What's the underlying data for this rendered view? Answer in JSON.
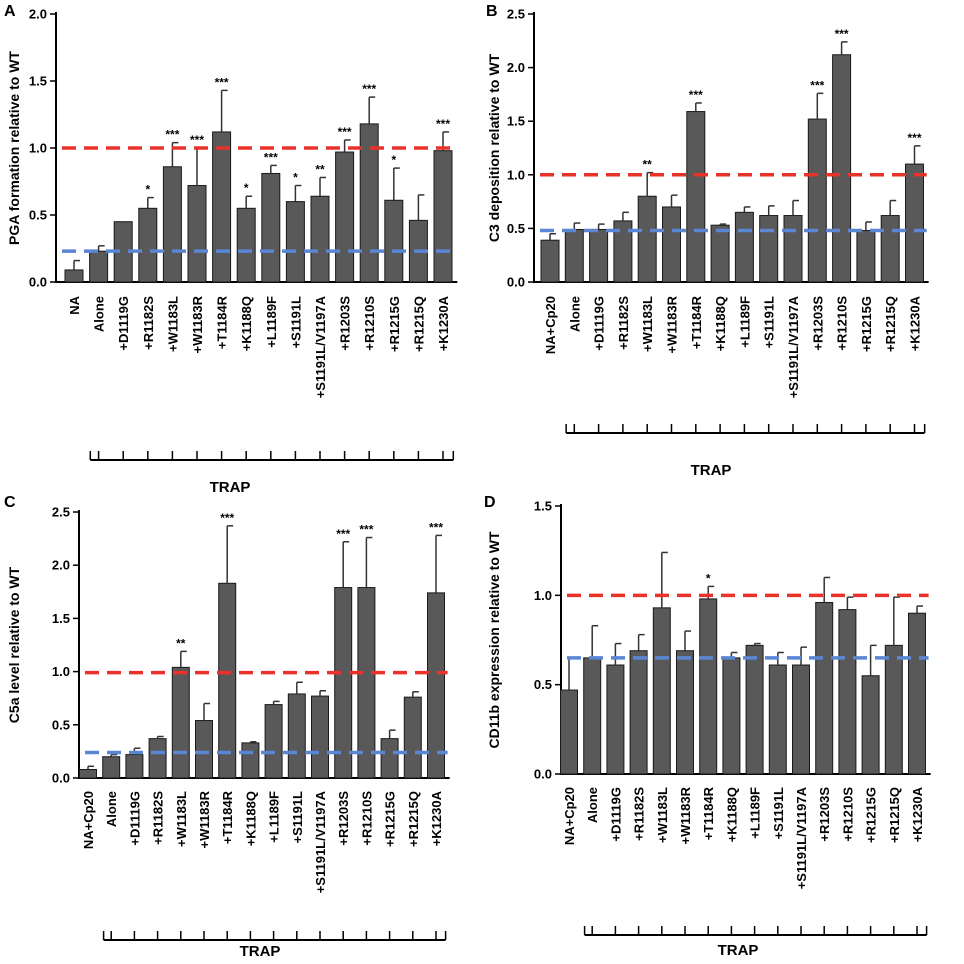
{
  "colors": {
    "bar": "#595959",
    "wt_line": "#e8322a",
    "baseline_line": "#5b86d4"
  },
  "chart_data": [
    {
      "panel": "A",
      "type": "bar",
      "ylabel": "PGA formation relative to WT",
      "ylim": [
        0,
        2.0
      ],
      "yticks": [
        "0.0",
        "0.5",
        "1.0",
        "1.5",
        "2.0"
      ],
      "group_label": "TRAP",
      "group_start_index": 1,
      "wt_line": 1.0,
      "baseline_line": 0.23,
      "categories": [
        "NA",
        "Alone",
        "+D1119G",
        "+R1182S",
        "+W1183L",
        "+W1183R",
        "+T1184R",
        "+K1188Q",
        "+L1189F",
        "+S1191L",
        "+S1191L/V1197A",
        "+R1203S",
        "+R1210S",
        "+R1215G",
        "+R1215Q",
        "+K1230A"
      ],
      "values": [
        0.09,
        0.23,
        0.45,
        0.55,
        0.86,
        0.72,
        1.12,
        0.55,
        0.81,
        0.6,
        0.64,
        0.97,
        1.18,
        0.61,
        0.46,
        0.98
      ],
      "errors": [
        0.07,
        0.04,
        0.0,
        0.08,
        0.18,
        0.28,
        0.31,
        0.09,
        0.06,
        0.12,
        0.14,
        0.09,
        0.2,
        0.24,
        0.19,
        0.14
      ],
      "significance": [
        "",
        "",
        "",
        "*",
        "***",
        "***",
        "***",
        "*",
        "***",
        "*",
        "**",
        "***",
        "***",
        "*",
        "",
        "***"
      ]
    },
    {
      "panel": "B",
      "type": "bar",
      "ylabel": "C3 deposition relative to WT",
      "ylim": [
        0,
        2.5
      ],
      "yticks": [
        "0.0",
        "0.5",
        "1.0",
        "1.5",
        "2.0",
        "2.5"
      ],
      "group_label": "TRAP",
      "group_start_index": 1,
      "wt_line": 1.0,
      "baseline_line": 0.48,
      "categories": [
        "NA+Cp20",
        "Alone",
        "+D1119G",
        "+R1182S",
        "+W1183L",
        "+W1183R",
        "+T1184R",
        "+K1188Q",
        "+L1189F",
        "+S1191L",
        "+S1191L/V1197A",
        "+R1203S",
        "+R1210S",
        "+R1215G",
        "+R1215Q",
        "+K1230A"
      ],
      "values": [
        0.39,
        0.49,
        0.49,
        0.57,
        0.8,
        0.7,
        1.59,
        0.53,
        0.65,
        0.62,
        0.62,
        1.52,
        2.12,
        0.48,
        0.62,
        1.1
      ],
      "errors": [
        0.06,
        0.06,
        0.05,
        0.08,
        0.22,
        0.11,
        0.08,
        0.01,
        0.05,
        0.09,
        0.14,
        0.24,
        0.12,
        0.08,
        0.14,
        0.17
      ],
      "significance": [
        "",
        "",
        "",
        "",
        "**",
        "",
        "***",
        "",
        "",
        "",
        "",
        "***",
        "***",
        "",
        "",
        "***"
      ]
    },
    {
      "panel": "C",
      "type": "bar",
      "ylabel": "C5a level relative to WT",
      "ylim": [
        0,
        2.5
      ],
      "yticks": [
        "0.0",
        "0.5",
        "1.0",
        "1.5",
        "2.0",
        "2.5"
      ],
      "group_label": "TRAP",
      "group_start_index": 1,
      "wt_line": 0.99,
      "baseline_line": 0.24,
      "categories": [
        "NA+Cp20",
        "Alone",
        "+D1119G",
        "+R1182S",
        "+W1183L",
        "+W1183R",
        "+T1184R",
        "+K1188Q",
        "+L1189F",
        "+S1191L",
        "+S1191L/V1197A",
        "+R1203S",
        "+R1210S",
        "+R1215G",
        "+R1215Q",
        "+K1230A"
      ],
      "values": [
        0.08,
        0.2,
        0.22,
        0.37,
        1.04,
        0.54,
        1.83,
        0.33,
        0.69,
        0.79,
        0.77,
        1.79,
        1.79,
        0.37,
        0.76,
        1.74
      ],
      "errors": [
        0.03,
        0.02,
        0.06,
        0.02,
        0.15,
        0.16,
        0.54,
        0.01,
        0.03,
        0.11,
        0.05,
        0.43,
        0.47,
        0.08,
        0.05,
        0.54
      ],
      "significance": [
        "",
        "",
        "",
        "",
        "**",
        "",
        "***",
        "",
        "",
        "",
        "",
        "***",
        "***",
        "",
        "",
        "***"
      ]
    },
    {
      "panel": "D",
      "type": "bar",
      "ylabel": "CD11b expression relative to WT",
      "ylim": [
        0,
        1.5
      ],
      "yticks": [
        "0.0",
        "0.5",
        "1.0",
        "1.5"
      ],
      "group_label": "TRAP",
      "group_start_index": 1,
      "wt_line": 1.0,
      "baseline_line": 0.65,
      "categories": [
        "NA+Cp20",
        "Alone",
        "+D1119G",
        "+R1182S",
        "+W1183L",
        "+W1183R",
        "+T1184R",
        "+K1188Q",
        "+L1189F",
        "+S1191L",
        "+S1191L/V1197A",
        "+R1203S",
        "+R1210S",
        "+R1215G",
        "+R1215Q",
        "+K1230A"
      ],
      "values": [
        0.47,
        0.65,
        0.61,
        0.69,
        0.93,
        0.69,
        0.98,
        0.65,
        0.72,
        0.61,
        0.61,
        0.96,
        0.92,
        0.55,
        0.72,
        0.9
      ],
      "errors": [
        0.18,
        0.18,
        0.12,
        0.09,
        0.31,
        0.11,
        0.07,
        0.03,
        0.01,
        0.07,
        0.1,
        0.14,
        0.07,
        0.17,
        0.27,
        0.04
      ],
      "significance": [
        "",
        "",
        "",
        "",
        "",
        "",
        "*",
        "",
        "",
        "",
        "",
        "",
        "",
        "",
        "",
        ""
      ]
    }
  ]
}
